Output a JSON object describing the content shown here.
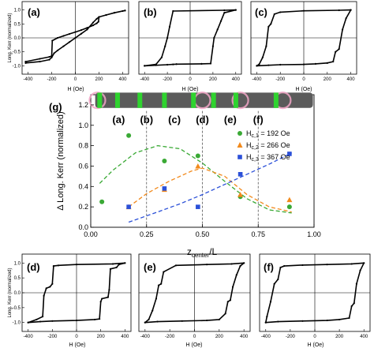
{
  "chart_data": [
    {
      "type": "line",
      "panel_label": "(a)",
      "xlabel": "H (Oe)",
      "ylabel": "Long. Kerr (normalized)",
      "xlim": [
        -450,
        450
      ],
      "ylim": [
        -1.3,
        1.3
      ],
      "xticks": [
        -400,
        -200,
        0,
        200,
        400
      ],
      "yticks": [
        -1.0,
        -0.5,
        0.0,
        0.5,
        1.0
      ],
      "series": [
        {
          "x": [
            -420,
            -300,
            -220,
            -200,
            -195,
            -150,
            -100,
            -50,
            0,
            50,
            100,
            150,
            180,
            195,
            200,
            260,
            330,
            400,
            420,
            420,
            330,
            260,
            200,
            180,
            150,
            100,
            50,
            0,
            -50,
            -100,
            -150,
            -180,
            -200,
            -220,
            -300,
            -420,
            -420
          ],
          "values": [
            -0.85,
            -0.75,
            -0.68,
            -0.65,
            -0.1,
            0.0,
            0.07,
            0.14,
            0.21,
            0.28,
            0.36,
            0.45,
            0.52,
            0.58,
            0.75,
            0.82,
            0.9,
            0.96,
            0.98,
            0.98,
            0.9,
            0.82,
            0.75,
            0.68,
            0.55,
            0.3,
            0.15,
            0.0,
            -0.15,
            -0.3,
            -0.45,
            -0.55,
            -0.7,
            -0.78,
            -0.85,
            -0.9,
            -0.85
          ]
        }
      ]
    },
    {
      "type": "line",
      "panel_label": "(b)",
      "xlabel": "H (Oe)",
      "xlim": [
        -450,
        450
      ],
      "ylim": [
        -1.3,
        1.3
      ],
      "xticks": [
        -400,
        -200,
        0,
        200,
        400
      ],
      "series": [
        {
          "x": [
            -400,
            -300,
            -200,
            -150,
            -120,
            100,
            180,
            200,
            210,
            240,
            270,
            300,
            400,
            400,
            300,
            -150,
            -180,
            -200,
            -220,
            -250,
            -300,
            -400
          ],
          "values": [
            -1.0,
            -0.98,
            -0.96,
            -0.95,
            -0.94,
            -0.93,
            -0.92,
            -0.3,
            0.0,
            0.3,
            0.6,
            0.9,
            1.0,
            1.0,
            0.99,
            0.96,
            0.4,
            0.0,
            -0.3,
            -0.7,
            -0.95,
            -1.0
          ]
        }
      ]
    },
    {
      "type": "line",
      "panel_label": "(c)",
      "xlabel": "H (Oe)",
      "xlim": [
        -450,
        450
      ],
      "ylim": [
        -1.3,
        1.3
      ],
      "xticks": [
        -400,
        -200,
        0,
        200,
        400
      ],
      "series": [
        {
          "x": [
            -400,
            -300,
            -200,
            0,
            100,
            200,
            250,
            270,
            300,
            330,
            360,
            400,
            400,
            300,
            0,
            -200,
            -250,
            -280,
            -300,
            -320,
            -350,
            -380,
            -400
          ],
          "values": [
            -1.0,
            -0.98,
            -0.96,
            -0.95,
            -0.93,
            -0.9,
            -0.85,
            -0.5,
            -0.4,
            0.3,
            0.7,
            1.0,
            1.0,
            0.99,
            0.97,
            0.92,
            0.85,
            0.5,
            0.4,
            -0.3,
            -0.7,
            -0.95,
            -1.0
          ]
        }
      ]
    },
    {
      "type": "scatter",
      "panel_label": "(g)",
      "xlabel": "z",
      "xlabel_sub": "center",
      "xlabel_tail": "/L",
      "ylabel": "Δ Long. Kerr (normalized)",
      "xlim": [
        0.0,
        1.0
      ],
      "ylim": [
        0.0,
        1.3
      ],
      "xticks": [
        0.0,
        0.25,
        0.5,
        0.75,
        1.0
      ],
      "xtick_labels": [
        "0.00",
        "0.25",
        "0.50",
        "0.75",
        "1.00"
      ],
      "yticks": [
        0.0,
        0.2,
        0.4,
        0.6,
        0.8,
        1.0,
        1.2
      ],
      "ytick_labels": [
        "0.0",
        "0.2",
        "0.4",
        "0.6",
        "0.8",
        "1.0",
        "1.2"
      ],
      "vlines": [
        0.25,
        0.5,
        0.75
      ],
      "region_labels": [
        "(a)",
        "(b)",
        "(c)",
        "(d)",
        "(e)",
        "(f)"
      ],
      "region_label_x": [
        0.125,
        0.25,
        0.375,
        0.5,
        0.625,
        0.75
      ],
      "legend_position": "right",
      "wire": {
        "green_segments_x": [
          0.04,
          0.12,
          0.22,
          0.33,
          0.46,
          0.55,
          0.65,
          0.83
        ],
        "circles_x": [
          0.03,
          0.5,
          0.67,
          0.86
        ]
      },
      "series": [
        {
          "name": "H",
          "sub": "c,1",
          "suffix": " = 192 Oe",
          "color": "#3aa935",
          "marker": "circle",
          "x": [
            0.05,
            0.17,
            0.33,
            0.48,
            0.67,
            0.89
          ],
          "values": [
            0.25,
            0.9,
            0.65,
            0.7,
            0.3,
            0.2
          ],
          "fit_x": [
            0.04,
            0.1,
            0.2,
            0.3,
            0.4,
            0.5,
            0.6,
            0.7,
            0.8,
            0.9
          ],
          "fit_y": [
            0.43,
            0.56,
            0.73,
            0.8,
            0.77,
            0.63,
            0.45,
            0.28,
            0.17,
            0.14
          ]
        },
        {
          "name": "H",
          "sub": "c,2",
          "suffix": " = 266 Oe",
          "color": "#f28a1c",
          "marker": "triangle",
          "x": [
            0.17,
            0.33,
            0.48,
            0.67,
            0.89
          ],
          "values": [
            0.2,
            0.37,
            0.6,
            0.32,
            0.27
          ],
          "fit_x": [
            0.17,
            0.25,
            0.35,
            0.45,
            0.5,
            0.6,
            0.7,
            0.8,
            0.9
          ],
          "fit_y": [
            0.2,
            0.33,
            0.45,
            0.55,
            0.58,
            0.5,
            0.32,
            0.2,
            0.15
          ]
        },
        {
          "name": "H",
          "sub": "c,3",
          "suffix": " = 367 Oe",
          "color": "#2b50d8",
          "marker": "square",
          "x": [
            0.17,
            0.33,
            0.48,
            0.67,
            0.89
          ],
          "values": [
            0.2,
            0.38,
            0.2,
            0.52,
            0.72
          ],
          "fit_x": [
            0.17,
            0.3,
            0.4,
            0.5,
            0.6,
            0.7,
            0.8,
            0.9
          ],
          "fit_y": [
            0.05,
            0.15,
            0.23,
            0.32,
            0.42,
            0.52,
            0.62,
            0.73
          ]
        }
      ]
    },
    {
      "type": "line",
      "panel_label": "(d)",
      "xlabel": "H (Oe)",
      "ylabel": "Long. Kerr (normalized)",
      "xlim": [
        -450,
        450
      ],
      "ylim": [
        -1.3,
        1.3
      ],
      "xticks": [
        -400,
        -200,
        0,
        200,
        400
      ],
      "yticks": [
        -1.0,
        -0.5,
        0.0,
        0.5,
        1.0
      ],
      "series": [
        {
          "x": [
            -400,
            -300,
            -200,
            0,
            150,
            190,
            200,
            210,
            260,
            270,
            280,
            330,
            350,
            400,
            400,
            300,
            0,
            -150,
            -190,
            -200,
            -220,
            -250,
            -270,
            -280,
            -330,
            -400
          ],
          "values": [
            -1.0,
            -0.97,
            -0.95,
            -0.93,
            -0.9,
            -0.88,
            -0.3,
            -0.2,
            -0.15,
            0.1,
            0.8,
            0.85,
            0.95,
            1.0,
            1.0,
            0.97,
            0.95,
            0.92,
            0.9,
            0.3,
            0.2,
            0.15,
            -0.1,
            -0.8,
            -0.9,
            -1.0
          ]
        }
      ]
    },
    {
      "type": "line",
      "panel_label": "(e)",
      "xlabel": "H (Oe)",
      "xlim": [
        -450,
        450
      ],
      "ylim": [
        -1.3,
        1.3
      ],
      "xticks": [
        -400,
        -200,
        0,
        200,
        400
      ],
      "series": [
        {
          "x": [
            -400,
            -300,
            -100,
            100,
            200,
            250,
            270,
            290,
            310,
            340,
            370,
            400,
            400,
            300,
            100,
            -150,
            -250,
            -270,
            -290,
            -310,
            -340,
            -370,
            -400
          ],
          "values": [
            -1.0,
            -0.97,
            -0.95,
            -0.93,
            -0.9,
            -0.7,
            -0.3,
            -0.25,
            0.2,
            0.6,
            0.9,
            1.0,
            1.0,
            0.97,
            0.95,
            0.92,
            0.7,
            0.3,
            0.25,
            -0.2,
            -0.6,
            -0.9,
            -1.0
          ]
        }
      ]
    },
    {
      "type": "line",
      "panel_label": "(f)",
      "xlabel": "H (Oe)",
      "xlim": [
        -450,
        450
      ],
      "ylim": [
        -1.3,
        1.3
      ],
      "xticks": [
        -400,
        -200,
        0,
        200,
        400
      ],
      "series": [
        {
          "x": [
            -400,
            -300,
            -100,
            100,
            200,
            280,
            300,
            320,
            340,
            370,
            400,
            400,
            300,
            100,
            -100,
            -250,
            -280,
            -300,
            -330,
            -360,
            -390,
            -400
          ],
          "values": [
            -1.0,
            -0.97,
            -0.95,
            -0.93,
            -0.9,
            -0.85,
            -0.45,
            -0.35,
            0.3,
            0.75,
            1.0,
            1.0,
            0.97,
            0.95,
            0.93,
            0.9,
            0.85,
            0.45,
            0.3,
            -0.3,
            -0.8,
            -1.0
          ]
        }
      ]
    }
  ]
}
